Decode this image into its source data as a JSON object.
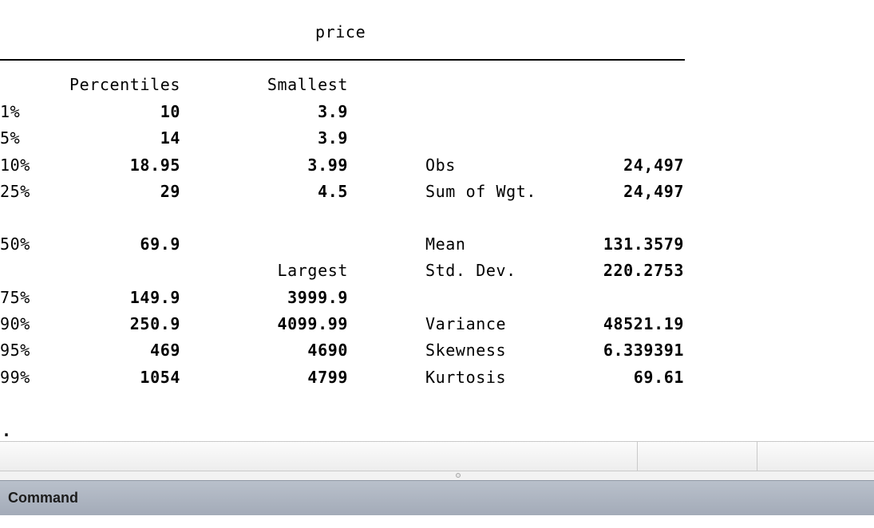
{
  "results": {
    "variable": "price",
    "headers": {
      "percentiles": "Percentiles",
      "smallest": "Smallest",
      "largest": "Largest"
    },
    "rows": [
      {
        "pct": "1%",
        "value": "10",
        "extreme": "3.9",
        "stat_label": "",
        "stat_value": ""
      },
      {
        "pct": "5%",
        "value": "14",
        "extreme": "3.9",
        "stat_label": "",
        "stat_value": ""
      },
      {
        "pct": "10%",
        "value": "18.95",
        "extreme": "3.99",
        "stat_label": "Obs",
        "stat_value": "24,497"
      },
      {
        "pct": "25%",
        "value": "29",
        "extreme": "4.5",
        "stat_label": "Sum of Wgt.",
        "stat_value": "24,497"
      },
      {
        "pct": "50%",
        "value": "69.9",
        "extreme": "",
        "stat_label": "Mean",
        "stat_value": "131.3579"
      },
      {
        "pct": "",
        "value": "",
        "extreme": "",
        "stat_label": "Std. Dev.",
        "stat_value": "220.2753"
      },
      {
        "pct": "75%",
        "value": "149.9",
        "extreme": "3999.9",
        "stat_label": "",
        "stat_value": ""
      },
      {
        "pct": "90%",
        "value": "250.9",
        "extreme": "4099.99",
        "stat_label": "Variance",
        "stat_value": "48521.19"
      },
      {
        "pct": "95%",
        "value": "469",
        "extreme": "4690",
        "stat_label": "Skewness",
        "stat_value": "6.339391"
      },
      {
        "pct": "99%",
        "value": "1054",
        "extreme": "4799",
        "stat_label": "Kurtosis",
        "stat_value": "69.61"
      }
    ],
    "prompt": "."
  },
  "command_panel": {
    "title": "Command"
  },
  "colors": {
    "header_bar": "#a9b1bd",
    "text": "#000000",
    "background": "#ffffff"
  }
}
